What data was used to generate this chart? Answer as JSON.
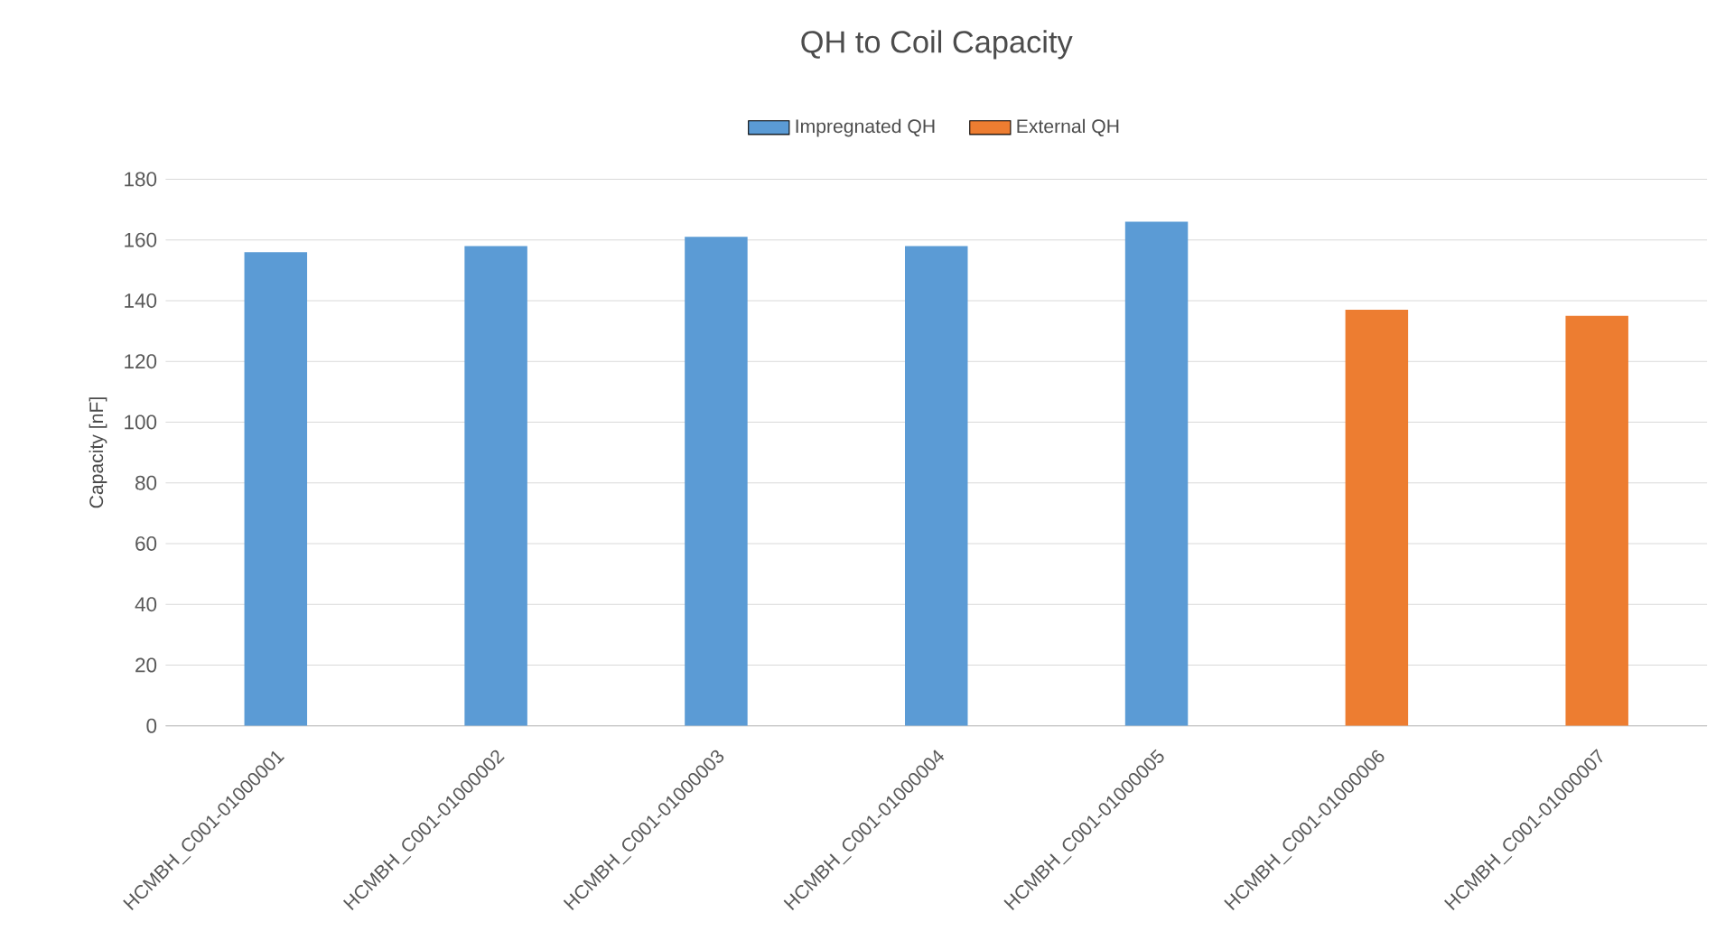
{
  "chart_data": {
    "type": "bar",
    "title": "QH to Coil Capacity",
    "ylabel": "Capacity [nF]",
    "categories": [
      "HCMBH_C001-01000001",
      "HCMBH_C001-01000002",
      "HCMBH_C001-01000003",
      "HCMBH_C001-01000004",
      "HCMBH_C001-01000005",
      "HCMBH_C001-01000006",
      "HCMBH_C001-01000007"
    ],
    "series": [
      {
        "name": "Impregnated QH",
        "color": "#5b9bd5",
        "values": [
          156,
          158,
          161,
          158,
          166,
          null,
          null
        ]
      },
      {
        "name": "External QH",
        "color": "#ed7d31",
        "values": [
          null,
          null,
          null,
          null,
          null,
          137,
          135
        ]
      }
    ],
    "ylim": [
      0,
      180
    ],
    "yticks": [
      0,
      20,
      40,
      60,
      80,
      100,
      120,
      140,
      160,
      180
    ],
    "grid": "y",
    "legend": "top"
  }
}
